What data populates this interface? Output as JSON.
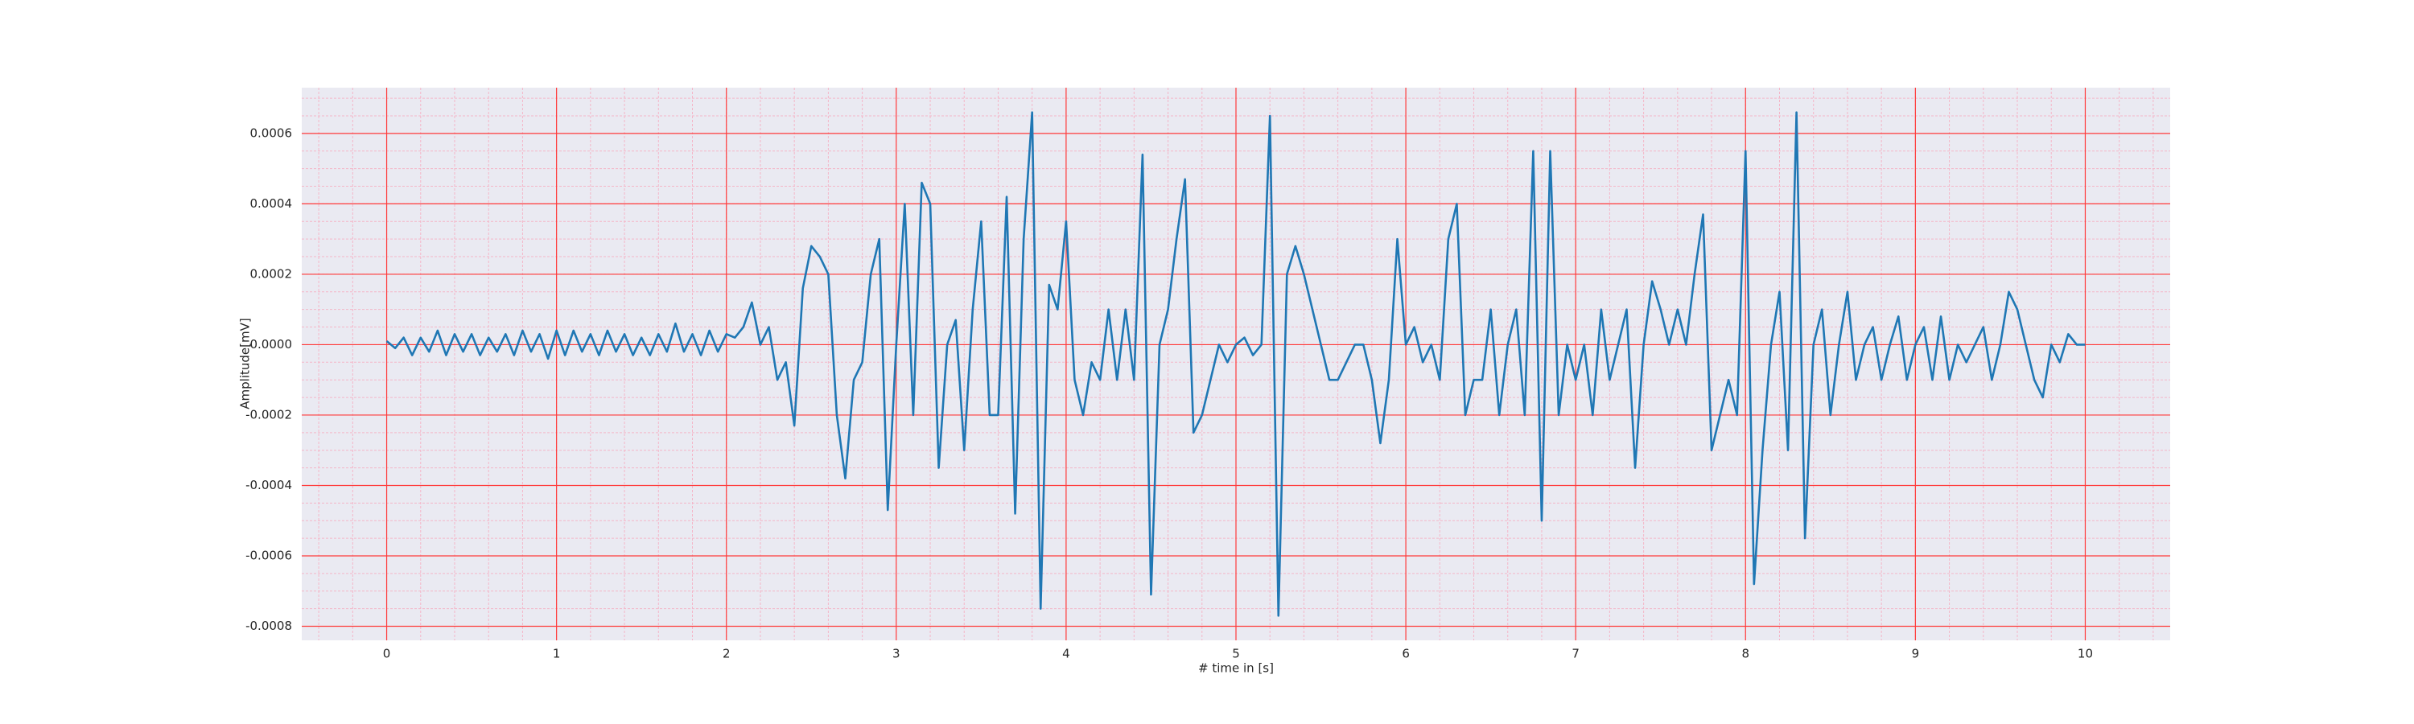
{
  "chart_data": {
    "type": "line",
    "xlabel": "# time in [s]",
    "ylabel": "Amplitude[mV]",
    "xlim": [
      -0.5,
      10.5
    ],
    "ylim": [
      -0.00084,
      0.00073
    ],
    "xticks": [
      0,
      1,
      2,
      3,
      4,
      5,
      6,
      7,
      8,
      9,
      10
    ],
    "yticks": [
      -0.0008,
      -0.0006,
      -0.0004,
      -0.0002,
      {
        "value": 0,
        "label": "0.0000"
      },
      0.0002,
      0.0004,
      0.0006
    ],
    "grid": true,
    "minor_grid": true,
    "series": [
      {
        "color": "#1f77b4",
        "x": [
          0,
          0.05,
          0.1,
          0.15,
          0.2,
          0.25,
          0.3,
          0.35,
          0.4,
          0.45,
          0.5,
          0.55,
          0.6,
          0.65,
          0.7,
          0.75,
          0.8,
          0.85,
          0.9,
          0.95,
          1,
          1.05,
          1.1,
          1.15,
          1.2,
          1.25,
          1.3,
          1.35,
          1.4,
          1.45,
          1.5,
          1.55,
          1.6,
          1.65,
          1.7,
          1.75,
          1.8,
          1.85,
          1.9,
          1.95,
          2,
          2.05,
          2.1,
          2.15,
          2.2,
          2.25,
          2.3,
          2.35,
          2.4,
          2.45,
          2.5,
          2.55,
          2.6,
          2.65,
          2.7,
          2.75,
          2.8,
          2.85,
          2.9,
          2.95,
          3,
          3.05,
          3.1,
          3.15,
          3.2,
          3.25,
          3.3,
          3.35,
          3.4,
          3.45,
          3.5,
          3.55,
          3.6,
          3.65,
          3.7,
          3.75,
          3.8,
          3.85,
          3.9,
          3.95,
          4,
          4.05,
          4.1,
          4.15,
          4.2,
          4.25,
          4.3,
          4.35,
          4.4,
          4.45,
          4.5,
          4.55,
          4.6,
          4.65,
          4.7,
          4.75,
          4.8,
          4.85,
          4.9,
          4.95,
          5,
          5.05,
          5.1,
          5.15,
          5.2,
          5.25,
          5.3,
          5.35,
          5.4,
          5.45,
          5.5,
          5.55,
          5.6,
          5.65,
          5.7,
          5.75,
          5.8,
          5.85,
          5.9,
          5.95,
          6,
          6.05,
          6.1,
          6.15,
          6.2,
          6.25,
          6.3,
          6.35,
          6.4,
          6.45,
          6.5,
          6.55,
          6.6,
          6.65,
          6.7,
          6.75,
          6.8,
          6.85,
          6.9,
          6.95,
          7,
          7.05,
          7.1,
          7.15,
          7.2,
          7.25,
          7.3,
          7.35,
          7.4,
          7.45,
          7.5,
          7.55,
          7.6,
          7.65,
          7.7,
          7.75,
          7.8,
          7.85,
          7.9,
          7.95,
          8,
          8.05,
          8.1,
          8.15,
          8.2,
          8.25,
          8.3,
          8.35,
          8.4,
          8.45,
          8.5,
          8.55,
          8.6,
          8.65,
          8.7,
          8.75,
          8.8,
          8.85,
          8.9,
          8.95,
          9,
          9.05,
          9.1,
          9.15,
          9.2,
          9.25,
          9.3,
          9.35,
          9.4,
          9.45,
          9.5,
          9.55,
          9.6,
          9.65,
          9.7,
          9.75,
          9.8,
          9.85,
          9.9,
          9.95,
          10
        ],
        "values": [
          1e-05,
          -1e-05,
          2e-05,
          -3e-05,
          2e-05,
          -2e-05,
          4e-05,
          -3e-05,
          3e-05,
          -2e-05,
          3e-05,
          -3e-05,
          2e-05,
          -2e-05,
          3e-05,
          -3e-05,
          4e-05,
          -2e-05,
          3e-05,
          -4e-05,
          4e-05,
          -3e-05,
          4e-05,
          -2e-05,
          3e-05,
          -3e-05,
          4e-05,
          -2e-05,
          3e-05,
          -3e-05,
          2e-05,
          -3e-05,
          3e-05,
          -2e-05,
          6e-05,
          -2e-05,
          3e-05,
          -3e-05,
          4e-05,
          -2e-05,
          3e-05,
          2e-05,
          5e-05,
          0.00012,
          0,
          5e-05,
          -0.0001,
          -5e-05,
          -0.00023,
          0.00016,
          0.00028,
          0.00025,
          0.0002,
          -0.0002,
          -0.00038,
          -0.0001,
          -5e-05,
          0.0002,
          0.0003,
          -0.00047,
          0.0,
          0.0004,
          -0.0002,
          0.00046,
          0.0004,
          -0.00035,
          0,
          7e-05,
          -0.0003,
          0.0001,
          0.00035,
          -0.0002,
          -0.0002,
          0.00042,
          -0.00048,
          0.0003,
          0.00066,
          -0.00075,
          0.00017,
          0.0001,
          0.00035,
          -0.0001,
          -0.0002,
          -5e-05,
          -0.0001,
          0.0001,
          -0.0001,
          0.0001,
          -0.0001,
          0.00054,
          -0.00071,
          0,
          0.0001,
          0.0003,
          0.00047,
          -0.00025,
          -0.0002,
          -0.0001,
          0,
          -5e-05,
          0,
          2e-05,
          -3e-05,
          0,
          0.00065,
          -0.00077,
          0.0002,
          0.00028,
          0.0002,
          0.0001,
          0,
          -0.0001,
          -0.0001,
          -5e-05,
          0,
          0,
          -0.0001,
          -0.00028,
          -0.0001,
          0.0003,
          0,
          5e-05,
          -5e-05,
          0,
          -0.0001,
          0.0003,
          0.0004,
          -0.0002,
          -0.0001,
          -0.0001,
          0.0001,
          -0.0002,
          0,
          0.0001,
          -0.0002,
          0.00055,
          -0.0005,
          0.00055,
          -0.0002,
          0,
          -0.0001,
          0,
          -0.0002,
          0.0001,
          -0.0001,
          0,
          0.0001,
          -0.00035,
          0,
          0.00018,
          0.0001,
          0,
          0.0001,
          0,
          0.0002,
          0.00037,
          -0.0003,
          -0.0002,
          -0.0001,
          -0.0002,
          0.00055,
          -0.00068,
          -0.0003,
          0,
          0.00015,
          -0.0003,
          0.00066,
          -0.00055,
          0,
          0.0001,
          -0.0002,
          0,
          0.00015,
          -0.0001,
          0,
          5e-05,
          -0.0001,
          0,
          8e-05,
          -0.0001,
          0,
          5e-05,
          -0.0001,
          8e-05,
          -0.0001,
          0,
          -5e-05,
          0,
          5e-05,
          -0.0001,
          0,
          0.00015,
          0.0001,
          0,
          -0.0001,
          -0.00015,
          0,
          -5e-05,
          3e-05,
          0,
          0
        ]
      }
    ]
  }
}
